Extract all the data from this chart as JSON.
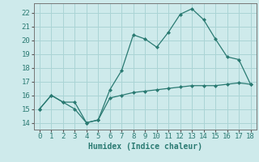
{
  "xlabel": "Humidex (Indice chaleur)",
  "ylabel": "",
  "background_color": "#ceeaeb",
  "grid_color": "#aad4d5",
  "line_color": "#2a7a72",
  "xlim": [
    -0.5,
    18.5
  ],
  "ylim": [
    13.5,
    22.7
  ],
  "yticks": [
    14,
    15,
    16,
    17,
    18,
    19,
    20,
    21,
    22
  ],
  "xticks": [
    0,
    1,
    2,
    3,
    4,
    5,
    6,
    7,
    8,
    9,
    10,
    11,
    12,
    13,
    14,
    15,
    16,
    17,
    18
  ],
  "line1_x": [
    0,
    1,
    2,
    3,
    4,
    5,
    6,
    7,
    8,
    9,
    10,
    11,
    12,
    13,
    14,
    15,
    16,
    17,
    18
  ],
  "line1_y": [
    15.0,
    16.0,
    15.5,
    15.0,
    14.0,
    14.2,
    16.4,
    17.8,
    20.4,
    20.1,
    19.5,
    20.6,
    21.9,
    22.3,
    21.5,
    20.1,
    18.8,
    18.6,
    16.8
  ],
  "line2_x": [
    0,
    1,
    2,
    3,
    4,
    5,
    6,
    7,
    8,
    9,
    10,
    11,
    12,
    13,
    14,
    15,
    16,
    17,
    18
  ],
  "line2_y": [
    15.0,
    16.0,
    15.5,
    15.5,
    14.0,
    14.2,
    15.8,
    16.0,
    16.2,
    16.3,
    16.4,
    16.5,
    16.6,
    16.7,
    16.7,
    16.7,
    16.8,
    16.9,
    16.8
  ],
  "font_size": 6.5
}
